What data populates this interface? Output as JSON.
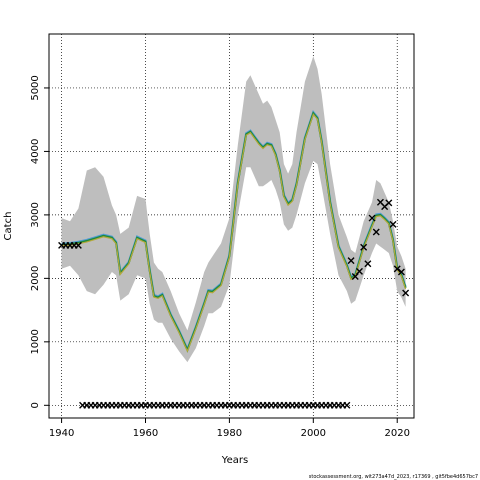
{
  "chart_data": {
    "type": "line",
    "xlabel": "Years",
    "ylabel": "Catch",
    "xlim": [
      1937,
      2024
    ],
    "ylim": [
      -200,
      5850
    ],
    "x_ticks": [
      1940,
      1960,
      1980,
      2000,
      2020
    ],
    "y_ticks": [
      0,
      1000,
      2000,
      3000,
      4000,
      5000
    ],
    "grid": true,
    "colors": {
      "band": "#bebebe",
      "line_blue": "#4f9bd6",
      "line_green": "#1f8a3a",
      "line_olive": "#b5a83a",
      "marker": "#000000"
    },
    "series": [
      {
        "role": "estimate",
        "x": [
          1940,
          1942,
          1944,
          1946,
          1948,
          1950,
          1952,
          1953,
          1954,
          1956,
          1958,
          1960,
          1961,
          1962,
          1963,
          1964,
          1966,
          1968,
          1970,
          1972,
          1974,
          1975,
          1976,
          1978,
          1980,
          1982,
          1984,
          1985,
          1986,
          1987,
          1988,
          1989,
          1990,
          1991,
          1992,
          1993,
          1994,
          1995,
          1996,
          1998,
          2000,
          2001,
          2002,
          2004,
          2006,
          2008,
          2009,
          2010,
          2012,
          2014,
          2015,
          2016,
          2017,
          2018,
          2019,
          2020,
          2021,
          2022
        ],
        "y": [
          2530,
          2540,
          2560,
          2590,
          2630,
          2670,
          2640,
          2560,
          2080,
          2240,
          2640,
          2580,
          2120,
          1720,
          1700,
          1740,
          1420,
          1160,
          870,
          1220,
          1600,
          1800,
          1790,
          1900,
          2350,
          3500,
          4270,
          4310,
          4220,
          4130,
          4060,
          4120,
          4100,
          3950,
          3700,
          3300,
          3170,
          3230,
          3480,
          4200,
          4600,
          4520,
          4150,
          3200,
          2500,
          2200,
          2000,
          2050,
          2500,
          2830,
          2990,
          3000,
          2940,
          2870,
          2600,
          2150,
          2050,
          1850
        ]
      }
    ],
    "band": {
      "x": [
        1940,
        1942,
        1944,
        1946,
        1948,
        1950,
        1952,
        1953,
        1954,
        1956,
        1958,
        1960,
        1961,
        1962,
        1963,
        1964,
        1966,
        1968,
        1970,
        1972,
        1974,
        1975,
        1976,
        1978,
        1980,
        1982,
        1984,
        1985,
        1986,
        1987,
        1988,
        1989,
        1990,
        1991,
        1992,
        1993,
        1994,
        1995,
        1996,
        1998,
        2000,
        2001,
        2002,
        2004,
        2006,
        2008,
        2009,
        2010,
        2012,
        2014,
        2015,
        2016,
        2017,
        2018,
        2019,
        2020,
        2021,
        2022
      ],
      "upper": [
        2950,
        2900,
        3100,
        3700,
        3750,
        3600,
        3150,
        3000,
        2700,
        2800,
        3300,
        3250,
        2700,
        2250,
        2150,
        2100,
        1800,
        1450,
        1180,
        1620,
        2100,
        2250,
        2350,
        2550,
        2950,
        4100,
        5100,
        5200,
        5050,
        4900,
        4750,
        4800,
        4700,
        4500,
        4300,
        3800,
        3650,
        3800,
        4300,
        5100,
        5500,
        5300,
        4900,
        3800,
        3000,
        2650,
        2450,
        2400,
        2900,
        3200,
        3550,
        3500,
        3350,
        3200,
        2900,
        2500,
        2350,
        2150
      ],
      "lower": [
        2150,
        2200,
        2050,
        1800,
        1750,
        1900,
        2100,
        2050,
        1650,
        1750,
        2050,
        2000,
        1600,
        1350,
        1300,
        1300,
        1050,
        850,
        680,
        900,
        1250,
        1450,
        1450,
        1550,
        1900,
        3000,
        3750,
        3750,
        3600,
        3450,
        3450,
        3500,
        3550,
        3400,
        3200,
        2850,
        2750,
        2800,
        3000,
        3500,
        3850,
        3800,
        3450,
        2700,
        2050,
        1800,
        1600,
        1650,
        2050,
        2400,
        2550,
        2500,
        2450,
        2400,
        2200,
        1800,
        1700,
        1550
      ]
    },
    "observed": {
      "x": [
        1940,
        1941,
        1942,
        1943,
        1944,
        2009,
        2010,
        2011,
        2012,
        2013,
        2014,
        2015,
        2016,
        2017,
        2018,
        2019,
        2020,
        2021,
        2022
      ],
      "y": [
        2520,
        2520,
        2520,
        2520,
        2520,
        2280,
        2030,
        2110,
        2490,
        2230,
        2950,
        2730,
        3200,
        3130,
        3190,
        2850,
        2150,
        2100,
        1770
      ]
    },
    "zero_markers": {
      "x_start": 1945,
      "x_end": 2008,
      "y": 0
    }
  },
  "footer": {
    "text": "stockassessment.org, wit273a47d_2023, r17369 , git5fbe4d657bc7"
  }
}
